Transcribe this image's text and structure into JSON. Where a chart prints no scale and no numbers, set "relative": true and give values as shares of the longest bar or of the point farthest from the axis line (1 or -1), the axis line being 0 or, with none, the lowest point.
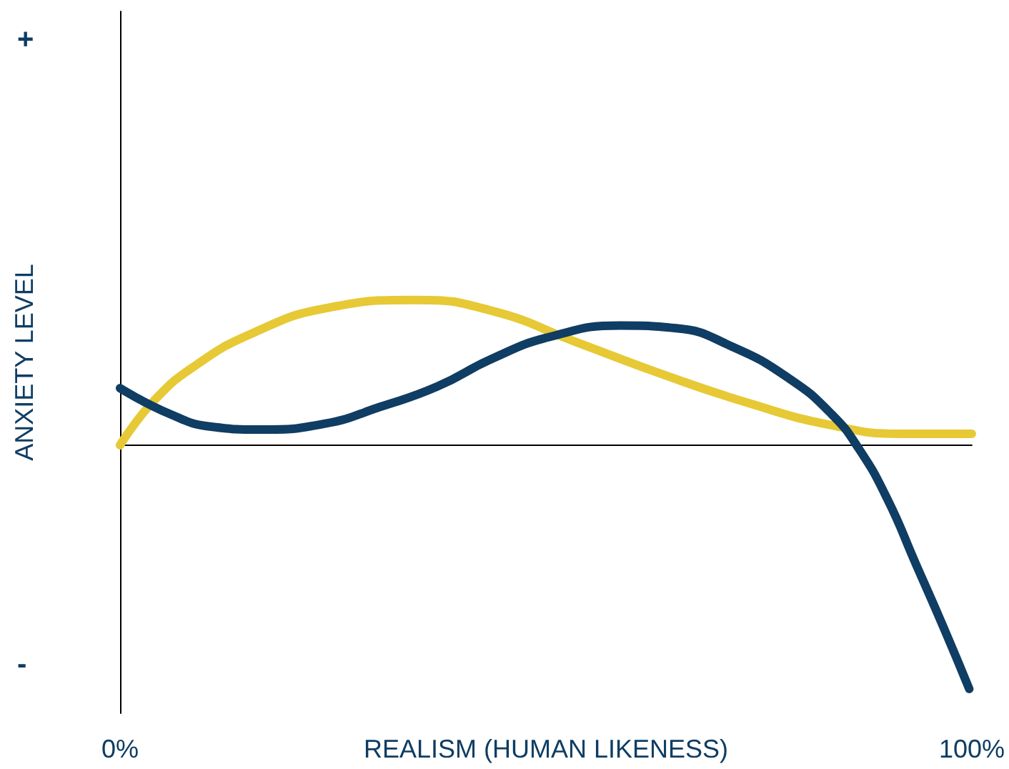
{
  "chart_data": {
    "type": "line",
    "relative": true,
    "xlabel": "REALISM (HUMAN LIKENESS)",
    "ylabel": "ANXIETY LEVEL",
    "annotations": [
      "+",
      "-"
    ],
    "xlim": [
      0,
      100
    ],
    "xticks": [
      {
        "value": 0,
        "label": "0%"
      },
      {
        "value": 100,
        "label": "100%"
      }
    ],
    "grid": false,
    "marker": "none",
    "line_style": "solid",
    "series": [
      {
        "color": "#e6c935",
        "x": [
          0,
          4.1,
          9.1,
          15.7,
          24,
          34.7,
          43.8,
          53.7,
          63.6,
          73.6,
          83.5,
          91.7,
          100
        ],
        "values": [
          0,
          0.187,
          0.333,
          0.462,
          0.561,
          0.596,
          0.55,
          0.421,
          0.292,
          0.175,
          0.082,
          0.047,
          0.047
        ]
      },
      {
        "color": "#0f3d63",
        "x": [
          0,
          5.8,
          10.7,
          16.5,
          24,
          30.6,
          37.2,
          43.8,
          50.4,
          58.7,
          65.3,
          71.9,
          78.5,
          83.5,
          86.8,
          90.1,
          93.4,
          96.7,
          99.7
        ],
        "values": [
          0.234,
          0.129,
          0.076,
          0.064,
          0.088,
          0.158,
          0.24,
          0.357,
          0.444,
          0.491,
          0.48,
          0.404,
          0.275,
          0.129,
          -0.018,
          -0.222,
          -0.485,
          -0.749,
          -1
        ]
      }
    ]
  }
}
